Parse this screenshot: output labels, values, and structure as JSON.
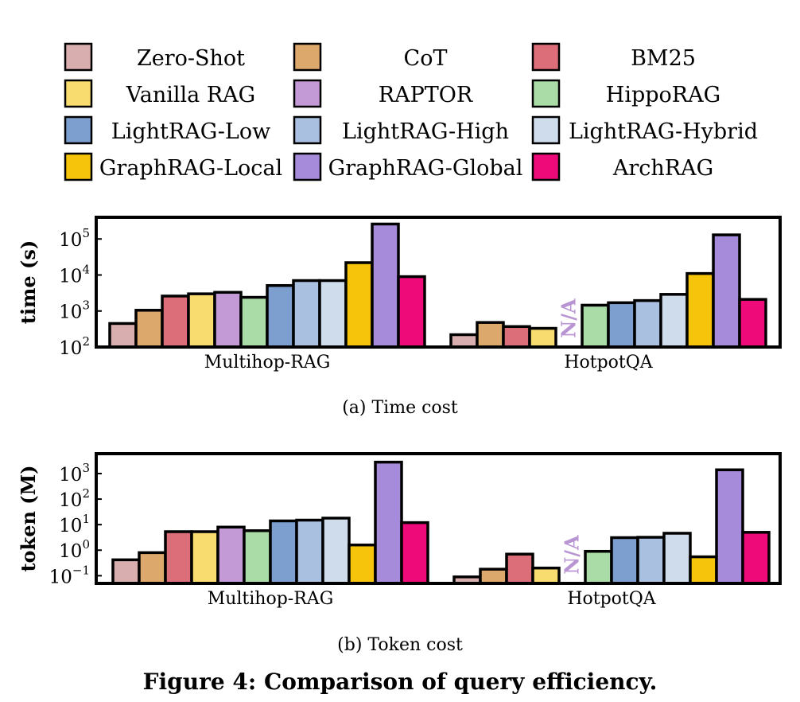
{
  "legend": [
    {
      "name": "Zero-Shot",
      "color": "#D8AEAE"
    },
    {
      "name": "CoT",
      "color": "#DDA86C"
    },
    {
      "name": "BM25",
      "color": "#DB6E78"
    },
    {
      "name": "Vanilla RAG",
      "color": "#F8DC70"
    },
    {
      "name": "RAPTOR",
      "color": "#C49AD6"
    },
    {
      "name": "HippoRAG",
      "color": "#A9DCA6"
    },
    {
      "name": "LightRAG-Low",
      "color": "#7C9FCF"
    },
    {
      "name": "LightRAG-High",
      "color": "#A9C0E0"
    },
    {
      "name": "LightRAG-Hybrid",
      "color": "#CEDCEC"
    },
    {
      "name": "GraphRAG-Local",
      "color": "#F6C40A"
    },
    {
      "name": "GraphRAG-Global",
      "color": "#A58BD9"
    },
    {
      "name": "ArchRAG",
      "color": "#EE0A78"
    }
  ],
  "chart_data": [
    {
      "type": "bar",
      "yscale": "log",
      "ylabel": "time (s)",
      "ylim": [
        100,
        400000
      ],
      "yticks": [
        {
          "v": 100,
          "t": "10",
          "e": "2"
        },
        {
          "v": 1000,
          "t": "10",
          "e": "3"
        },
        {
          "v": 10000,
          "t": "10",
          "e": "4"
        },
        {
          "v": 100000,
          "t": "10",
          "e": "5"
        }
      ],
      "categories": [
        "Multihop-RAG",
        "HotpotQA"
      ],
      "na_label": "N/A",
      "series": [
        {
          "name": "Zero-Shot",
          "values": [
            450,
            220
          ]
        },
        {
          "name": "CoT",
          "values": [
            1050,
            480
          ]
        },
        {
          "name": "BM25",
          "values": [
            2600,
            370
          ]
        },
        {
          "name": "Vanilla RAG",
          "values": [
            3000,
            330
          ]
        },
        {
          "name": "RAPTOR",
          "values": [
            3300,
            null
          ]
        },
        {
          "name": "HippoRAG",
          "values": [
            2400,
            1450
          ]
        },
        {
          "name": "LightRAG-Low",
          "values": [
            5100,
            1700
          ]
        },
        {
          "name": "LightRAG-High",
          "values": [
            7000,
            1950
          ]
        },
        {
          "name": "LightRAG-Hybrid",
          "values": [
            7000,
            2900
          ]
        },
        {
          "name": "GraphRAG-Local",
          "values": [
            22000,
            11000
          ]
        },
        {
          "name": "GraphRAG-Global",
          "values": [
            260000,
            130000
          ]
        },
        {
          "name": "ArchRAG",
          "values": [
            9000,
            2100
          ]
        }
      ],
      "caption": "(a)  Time cost"
    },
    {
      "type": "bar",
      "yscale": "log",
      "ylabel": "token (M)",
      "ylim": [
        0.05,
        6000
      ],
      "yticks": [
        {
          "v": 0.1,
          "t": "10",
          "e": "−1"
        },
        {
          "v": 1,
          "t": "10",
          "e": "0"
        },
        {
          "v": 10,
          "t": "10",
          "e": "1"
        },
        {
          "v": 100,
          "t": "10",
          "e": "2"
        },
        {
          "v": 1000,
          "t": "10",
          "e": "3"
        }
      ],
      "categories": [
        "Multihop-RAG",
        "HotpotQA"
      ],
      "na_label": "N/A",
      "series": [
        {
          "name": "Zero-Shot",
          "values": [
            0.42,
            0.09
          ]
        },
        {
          "name": "CoT",
          "values": [
            0.8,
            0.18
          ]
        },
        {
          "name": "BM25",
          "values": [
            5.3,
            0.7
          ]
        },
        {
          "name": "Vanilla RAG",
          "values": [
            5.3,
            0.2
          ]
        },
        {
          "name": "RAPTOR",
          "values": [
            8.0,
            null
          ]
        },
        {
          "name": "HippoRAG",
          "values": [
            5.8,
            0.9
          ]
        },
        {
          "name": "LightRAG-Low",
          "values": [
            14,
            3.1
          ]
        },
        {
          "name": "LightRAG-High",
          "values": [
            15,
            3.2
          ]
        },
        {
          "name": "LightRAG-Hybrid",
          "values": [
            18,
            4.6
          ]
        },
        {
          "name": "GraphRAG-Local",
          "values": [
            1.6,
            0.55
          ]
        },
        {
          "name": "GraphRAG-Global",
          "values": [
            2800,
            1400
          ]
        },
        {
          "name": "ArchRAG",
          "values": [
            12,
            5.0
          ]
        }
      ],
      "caption": "(b)  Token cost"
    }
  ],
  "figure_caption": "Figure 4: Comparison of query efficiency."
}
